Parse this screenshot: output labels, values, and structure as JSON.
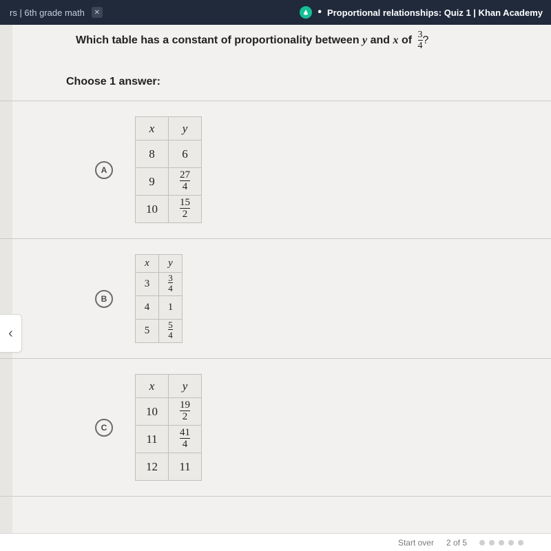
{
  "tabs": {
    "left_label": "rs | 6th grade math",
    "right_label": "Proportional relationships: Quiz 1 | Khan Academy"
  },
  "question": {
    "prefix": "Which table has a constant of proportionality between ",
    "var1": "y",
    "mid": " and ",
    "var2": "x",
    "of": " of ",
    "frac_num": "3",
    "frac_den": "4",
    "suffix": "?"
  },
  "choose_label": "Choose 1 answer:",
  "answers": [
    {
      "letter": "A",
      "size": "tbl-a",
      "headers": [
        "x",
        "y"
      ],
      "rows": [
        {
          "x": "8",
          "y": {
            "type": "int",
            "v": "6"
          }
        },
        {
          "x": "9",
          "y": {
            "type": "frac",
            "n": "27",
            "d": "4"
          }
        },
        {
          "x": "10",
          "y": {
            "type": "frac",
            "n": "15",
            "d": "2"
          }
        }
      ]
    },
    {
      "letter": "B",
      "size": "tbl-b",
      "headers": [
        "x",
        "y"
      ],
      "rows": [
        {
          "x": "3",
          "y": {
            "type": "frac",
            "n": "3",
            "d": "4"
          }
        },
        {
          "x": "4",
          "y": {
            "type": "int",
            "v": "1"
          }
        },
        {
          "x": "5",
          "y": {
            "type": "frac",
            "n": "5",
            "d": "4"
          }
        }
      ]
    },
    {
      "letter": "C",
      "size": "tbl-c",
      "headers": [
        "x",
        "y"
      ],
      "rows": [
        {
          "x": "10",
          "y": {
            "type": "frac",
            "n": "19",
            "d": "2"
          }
        },
        {
          "x": "11",
          "y": {
            "type": "frac",
            "n": "41",
            "d": "4"
          }
        },
        {
          "x": "12",
          "y": {
            "type": "int",
            "v": "11"
          }
        }
      ]
    }
  ],
  "footer": {
    "start_over": "Start over",
    "progress": "2 of 5"
  },
  "colors": {
    "tab_bg": "#202a3b",
    "page_bg": "#f2f1ef",
    "accent": "#14bf96",
    "border": "#bfbfbd"
  }
}
